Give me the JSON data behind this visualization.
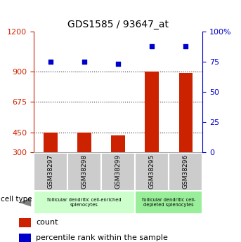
{
  "title": "GDS1585 / 93647_at",
  "samples": [
    "GSM38297",
    "GSM38298",
    "GSM38299",
    "GSM38295",
    "GSM38296"
  ],
  "counts": [
    450,
    450,
    428,
    900,
    893
  ],
  "percentile_ranks": [
    75,
    75,
    73,
    88,
    88
  ],
  "ylim_left": [
    300,
    1200
  ],
  "ylim_right": [
    0,
    100
  ],
  "yticks_left": [
    300,
    450,
    675,
    900,
    1200
  ],
  "yticks_right": [
    0,
    25,
    50,
    75,
    100
  ],
  "ytick_labels_right": [
    "0",
    "25",
    "50",
    "75",
    "100%"
  ],
  "bar_color": "#cc2200",
  "dot_color": "#0000cc",
  "left_axis_color": "#cc2200",
  "right_axis_color": "#0000cc",
  "group1_label": "follicular dendritic cell-enriched\nsplenocytes",
  "group2_label": "follicular dendritic cell-\ndepleted splenocytes",
  "group1_color": "#ccffcc",
  "group2_color": "#99ee99",
  "sample_box_color": "#cccccc",
  "legend_count_color": "#cc2200",
  "legend_pct_color": "#0000cc",
  "cell_type_label": "cell type",
  "dotted_line_color": "#333333",
  "background_color": "#ffffff"
}
